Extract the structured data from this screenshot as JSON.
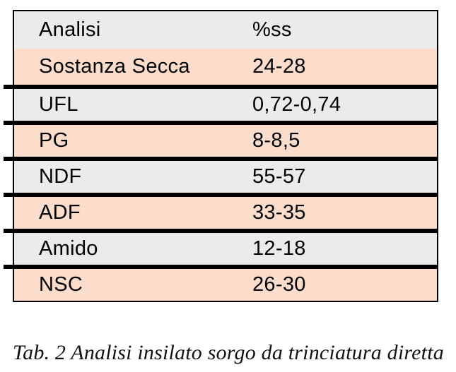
{
  "table": {
    "header": {
      "col1": "Analisi",
      "col2": "%ss"
    },
    "rows": [
      {
        "label": "Sostanza Secca",
        "value": "24-28"
      },
      {
        "label": "UFL",
        "value": "0,72-0,74"
      },
      {
        "label": "PG",
        "value": "8-8,5"
      },
      {
        "label": "NDF",
        "value": "55-57"
      },
      {
        "label": "ADF",
        "value": "33-35"
      },
      {
        "label": "Amido",
        "value": "12-18"
      },
      {
        "label": "NSC",
        "value": "26-30"
      }
    ],
    "colors": {
      "header_bg": "#ebebeb",
      "row_gray": "#ebebeb",
      "row_salmon": "#fcddcc",
      "border": "#000000"
    }
  },
  "caption": "Tab. 2 Analisi insilato sorgo da trinciatura diretta"
}
